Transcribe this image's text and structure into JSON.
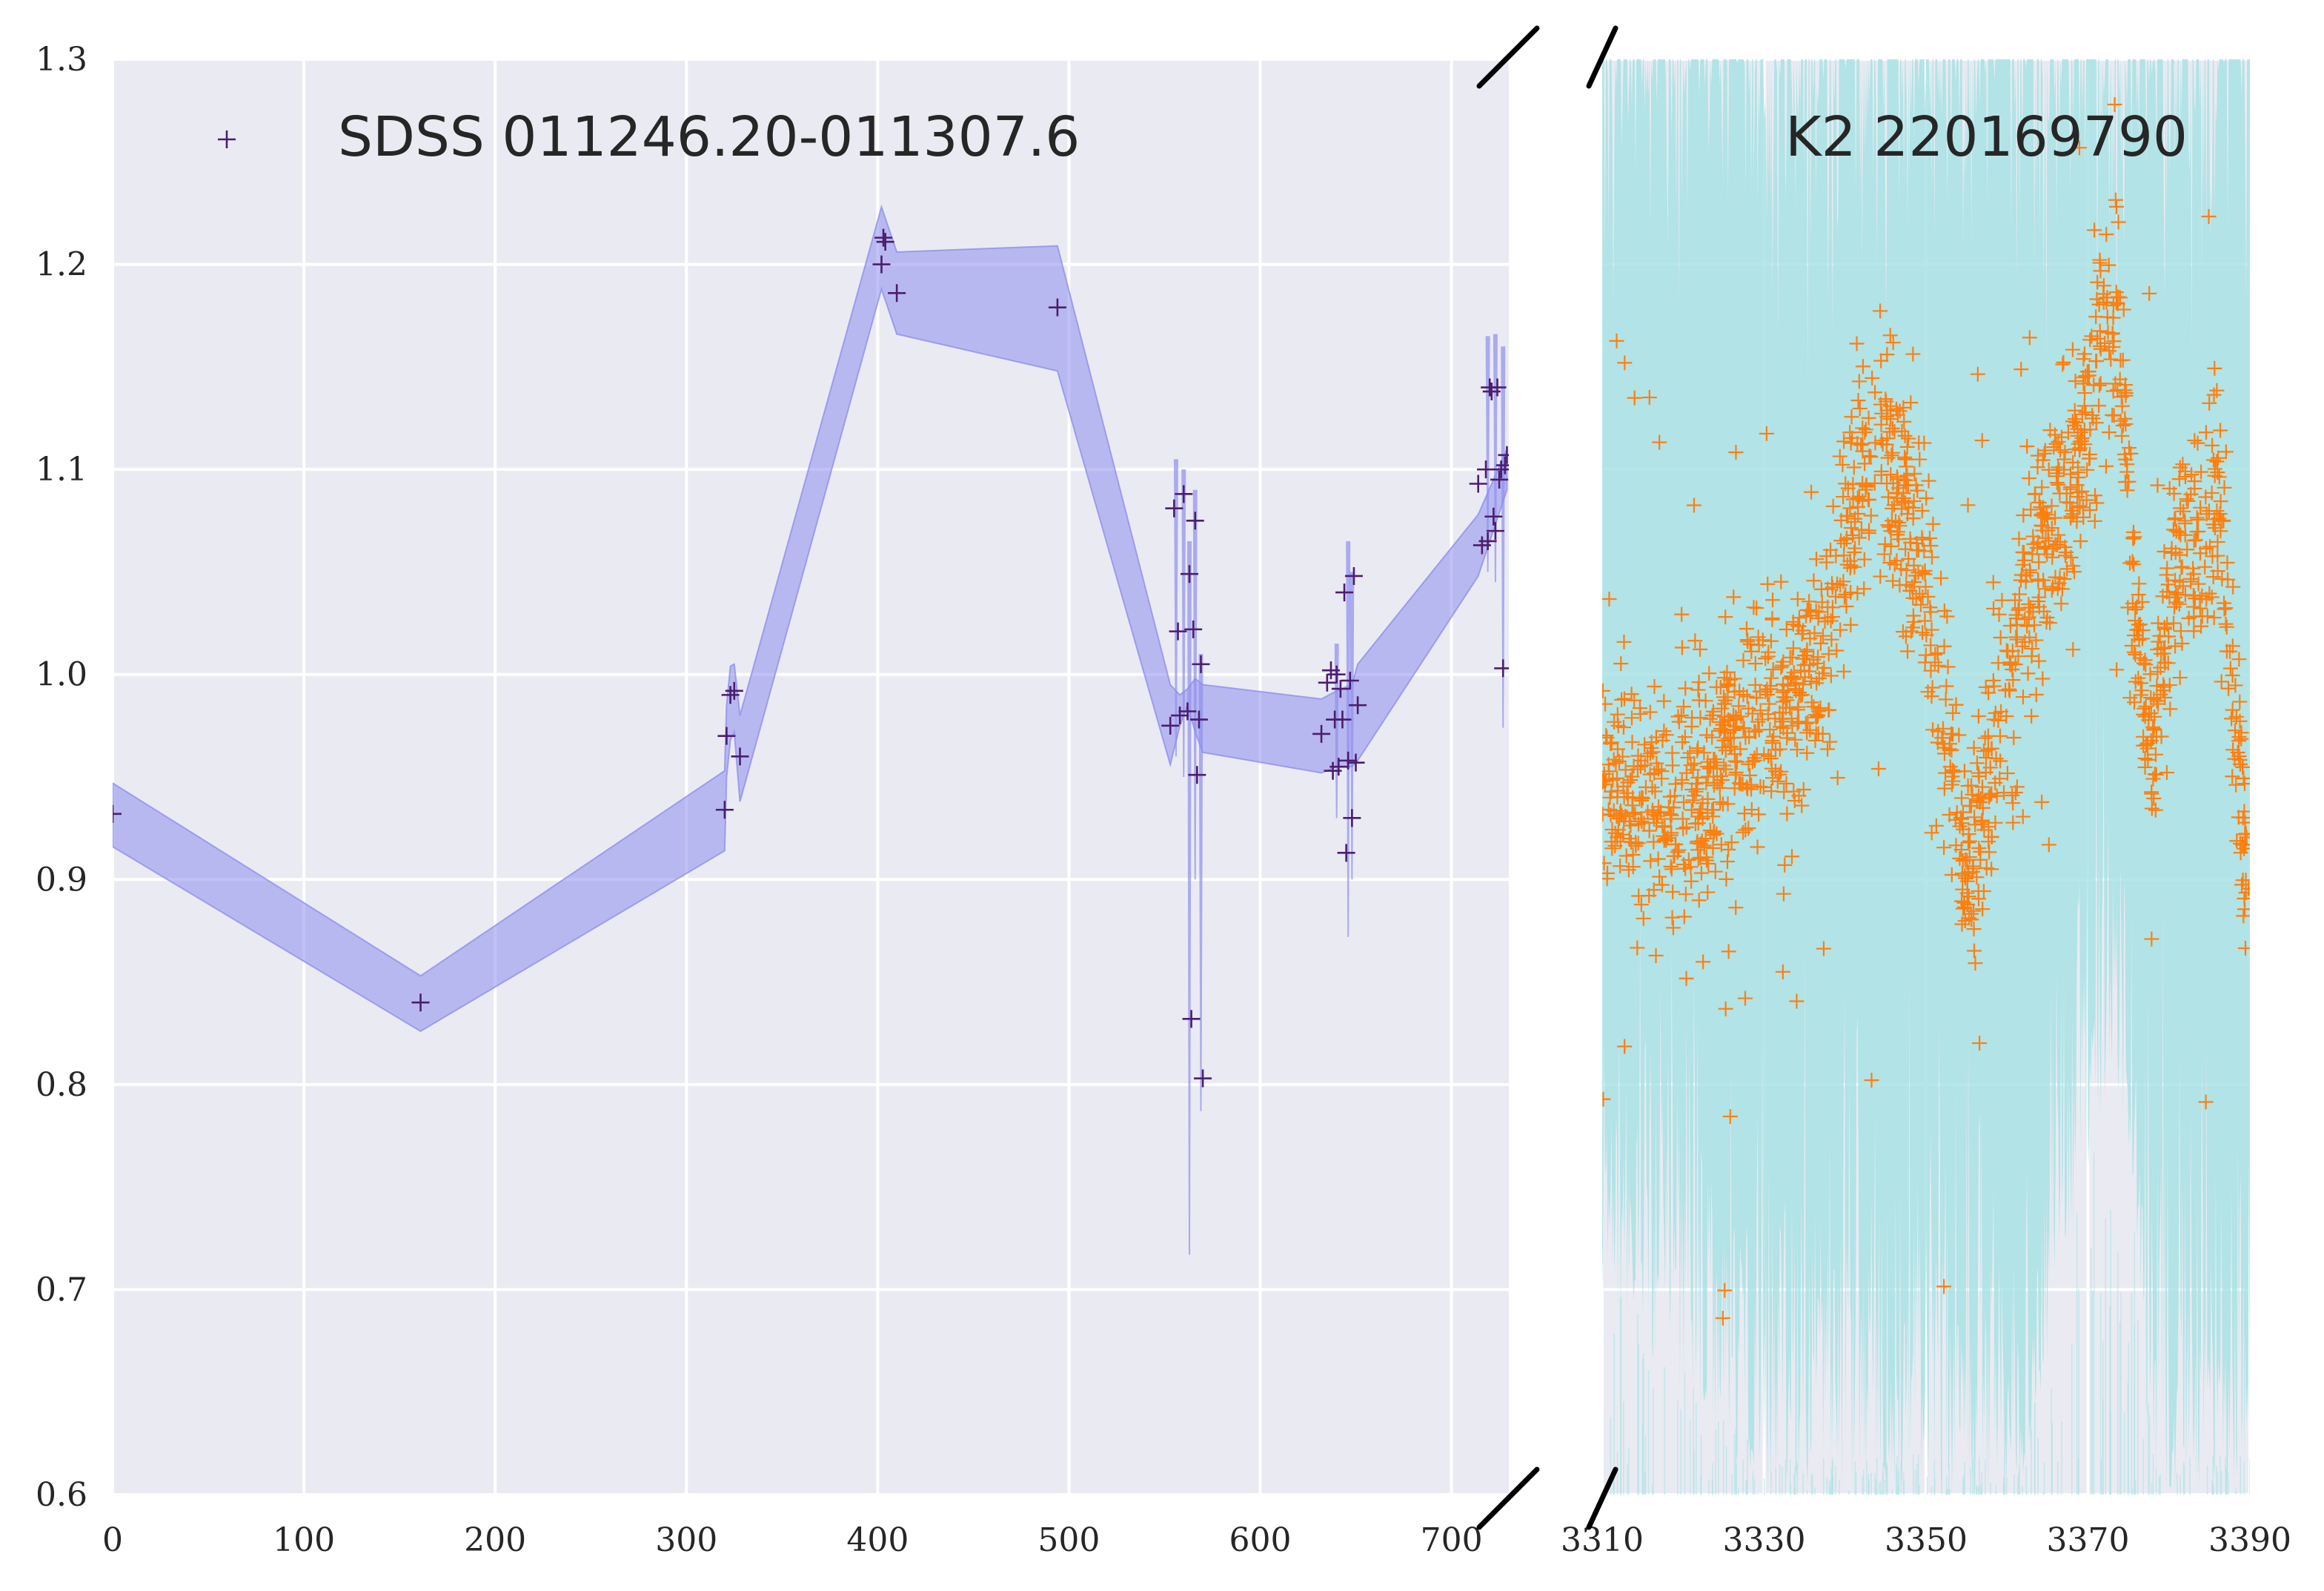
{
  "colors": {
    "axes_bg": "#EAEAF2",
    "grid": "#FFFFFF",
    "left_band": "#8E8EEF",
    "left_marker": "#4B1E6E",
    "right_band": "#A8E2E4",
    "right_marker": "#FF7F0E",
    "break_mark": "#000000"
  },
  "chart_data": [
    {
      "type": "scatter",
      "name": "sdss-panel",
      "xlim": [
        0,
        730
      ],
      "ylim": [
        0.6,
        1.3
      ],
      "xticks": [
        "0",
        "100",
        "200",
        "300",
        "400",
        "500",
        "600",
        "700"
      ],
      "yticks": [
        "0.6",
        "0.7",
        "0.8",
        "0.9",
        "1.0",
        "1.1",
        "1.2",
        "1.3"
      ],
      "grid": true,
      "legend_placement": "top-left",
      "series": [
        {
          "name": "SDSS 011246.20-011307.6",
          "marker": "+",
          "x": [
            0,
            161,
            320,
            321,
            323,
            325,
            328,
            402,
            403,
            404,
            410,
            494,
            553,
            555,
            557,
            558,
            560,
            562,
            563,
            564,
            565,
            566,
            567,
            568,
            569,
            570,
            632,
            635,
            637,
            638,
            639,
            640,
            641,
            642,
            643,
            644,
            645,
            646,
            647,
            648,
            649,
            650,
            651,
            714,
            716,
            718,
            719,
            720,
            721,
            722,
            723,
            724,
            725,
            726,
            727,
            728,
            729
          ],
          "y": [
            0.932,
            0.84,
            0.934,
            0.97,
            0.99,
            0.992,
            0.96,
            1.2,
            1.213,
            1.211,
            1.186,
            1.179,
            0.975,
            1.081,
            1.021,
            0.98,
            1.088,
            0.982,
            1.049,
            0.832,
            1.022,
            1.075,
            0.951,
            0.978,
            1.005,
            0.803,
            0.971,
            0.996,
            1.002,
            0.953,
            0.978,
            1.0,
            0.955,
            0.993,
            0.978,
            1.04,
            0.913,
            0.958,
            0.997,
            0.93,
            1.048,
            0.957,
            0.985,
            1.093,
            1.063,
            1.1,
            1.065,
            1.14,
            1.138,
            1.077,
            1.07,
            1.14,
            1.095,
            1.1,
            1.003,
            1.102,
            1.107
          ]
        },
        {
          "name": "sdss-uncertainty-band",
          "x": [
            0,
            161,
            320,
            321,
            323,
            325,
            328,
            402,
            410,
            494,
            553,
            558,
            562,
            566,
            570,
            632,
            640,
            648,
            651,
            714,
            729
          ],
          "lower": [
            0.916,
            0.826,
            0.914,
            0.95,
            0.968,
            0.972,
            0.938,
            1.188,
            1.166,
            1.148,
            0.956,
            0.975,
            0.985,
            0.972,
            0.962,
            0.952,
            0.955,
            0.955,
            0.958,
            1.048,
            1.09
          ],
          "upper": [
            0.947,
            0.853,
            0.953,
            0.985,
            1.004,
            1.005,
            0.98,
            1.228,
            1.206,
            1.209,
            0.995,
            0.99,
            0.993,
            0.998,
            0.995,
            0.988,
            0.992,
            0.995,
            1.005,
            1.078,
            1.11
          ],
          "spikes": [
            {
              "x": 556,
              "low": 0.96,
              "high": 1.105
            },
            {
              "x": 560,
              "low": 0.95,
              "high": 1.1
            },
            {
              "x": 563,
              "low": 0.717,
              "high": 1.065
            },
            {
              "x": 566,
              "low": 0.9,
              "high": 1.09
            },
            {
              "x": 569,
              "low": 0.787,
              "high": 1.01
            },
            {
              "x": 640,
              "low": 0.93,
              "high": 1.015
            },
            {
              "x": 646,
              "low": 0.872,
              "high": 1.065
            },
            {
              "x": 648,
              "low": 0.9,
              "high": 1.05
            },
            {
              "x": 719,
              "low": 1.05,
              "high": 1.165
            },
            {
              "x": 723,
              "low": 1.045,
              "high": 1.166
            },
            {
              "x": 727,
              "low": 0.974,
              "high": 1.16
            }
          ]
        }
      ]
    },
    {
      "type": "scatter",
      "name": "k2-panel",
      "xlim": [
        3310,
        3390
      ],
      "ylim": [
        0.6,
        1.3
      ],
      "xticks": [
        "3310",
        "3330",
        "3350",
        "3370",
        "3390"
      ],
      "grid": true,
      "legend_placement": "top-right",
      "series": [
        {
          "name": "K2 220169790",
          "marker": "+",
          "trend_x": [
            3310,
            3314,
            3318,
            3322,
            3326,
            3330,
            3334,
            3338,
            3341,
            3344,
            3347,
            3350,
            3352,
            3354,
            3356,
            3358,
            3361,
            3364,
            3367,
            3370,
            3372,
            3374,
            3375,
            3376,
            3378,
            3380,
            3382,
            3384,
            3386,
            3387,
            3388,
            3389,
            3390
          ],
          "trend_y": [
            0.945,
            0.935,
            0.93,
            0.945,
            0.965,
            0.975,
            0.99,
            1.02,
            1.08,
            1.11,
            1.09,
            1.04,
            0.98,
            0.92,
            0.905,
            0.96,
            1.02,
            1.06,
            1.08,
            1.12,
            1.18,
            1.16,
            1.08,
            1.02,
            0.96,
            1.04,
            1.07,
            1.06,
            1.09,
            1.05,
            0.99,
            0.92,
            0.9
          ],
          "scatter_sigma": 0.028,
          "approx_points": 1600
        },
        {
          "name": "k2-uncertainty-band",
          "x": [
            3310,
            3330,
            3338,
            3345,
            3350,
            3355,
            3362,
            3368,
            3374,
            3378,
            3384,
            3390
          ],
          "lower": [
            0.69,
            0.6,
            0.6,
            0.6,
            0.6,
            0.6,
            0.6,
            0.72,
            0.8,
            0.6,
            0.6,
            0.6
          ],
          "upper": [
            1.3,
            1.3,
            1.3,
            1.3,
            1.3,
            1.3,
            1.3,
            1.3,
            1.3,
            1.3,
            1.3,
            1.3
          ]
        }
      ]
    }
  ]
}
